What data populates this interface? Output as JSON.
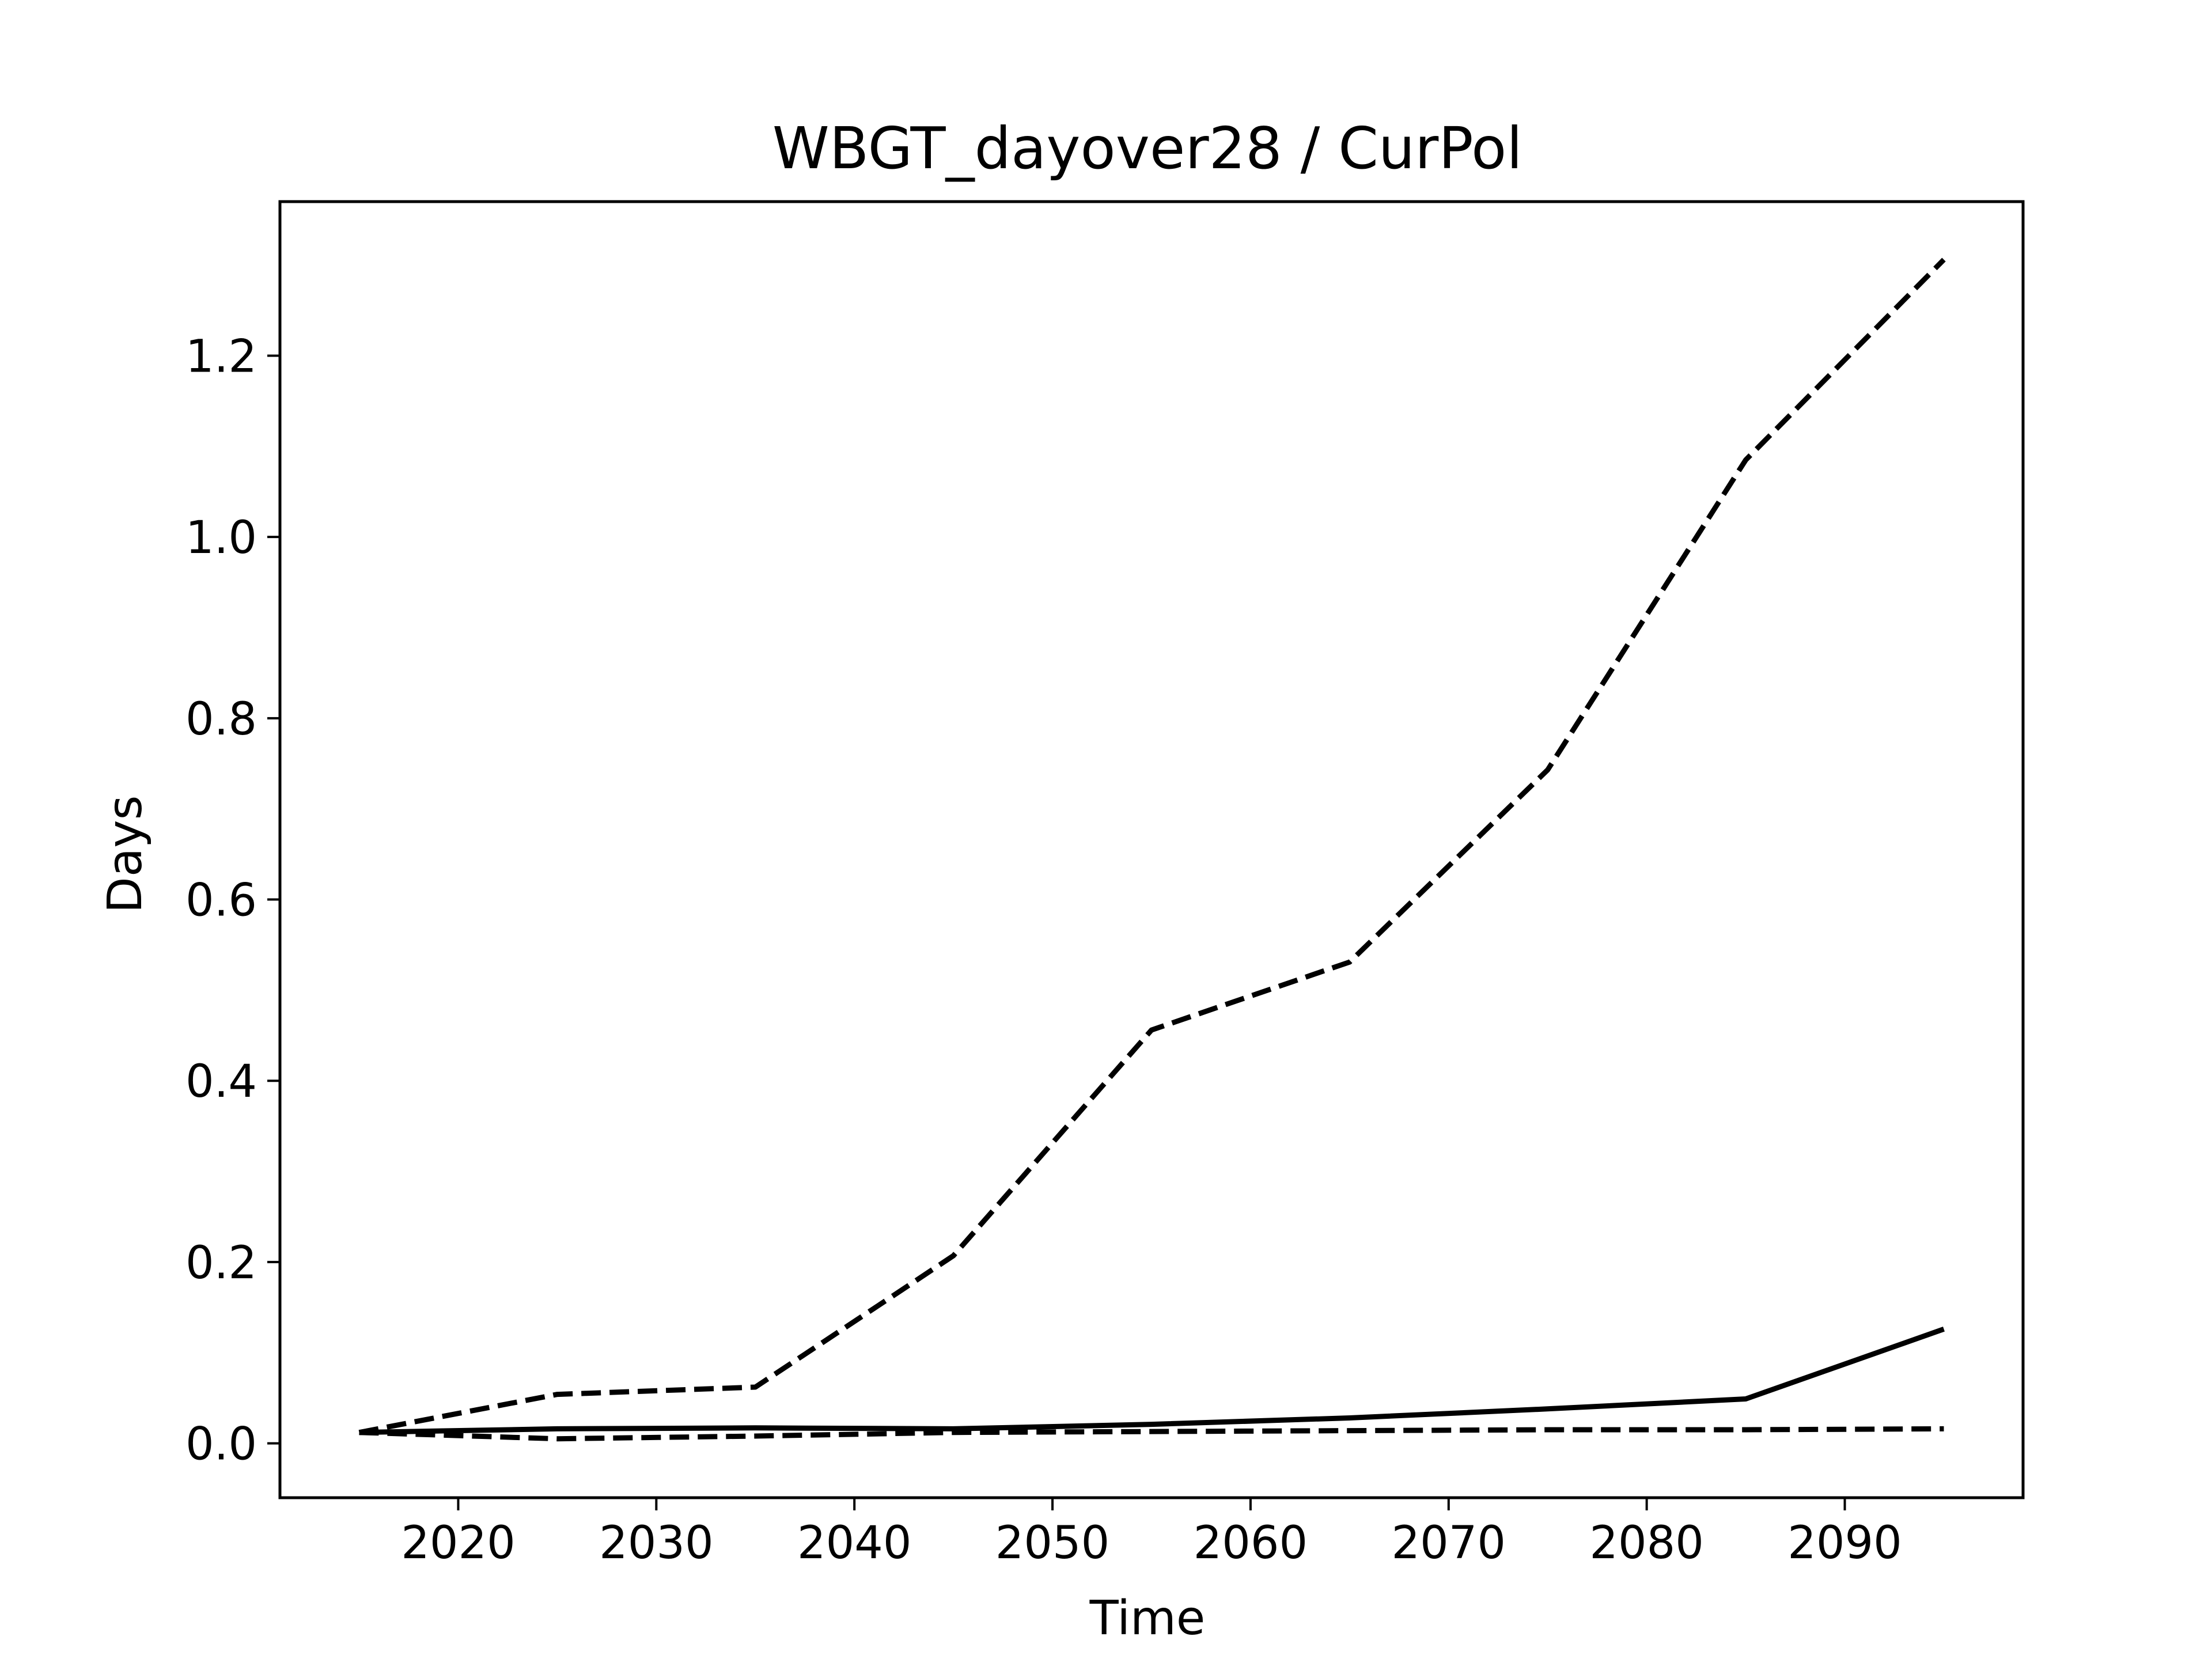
{
  "chart_data": {
    "type": "line",
    "title": "WBGT_dayover28 / CurPol",
    "xlabel": "Time",
    "ylabel": "Days",
    "xlim": [
      2011,
      2099
    ],
    "ylim": [
      -0.06,
      1.37
    ],
    "x_ticks": [
      2020,
      2030,
      2040,
      2050,
      2060,
      2070,
      2080,
      2090
    ],
    "y_ticks": [
      0.0,
      0.2,
      0.4,
      0.6,
      0.8,
      1.0,
      1.2
    ],
    "x_tick_labels": [
      "2020",
      "2030",
      "2040",
      "2050",
      "2060",
      "2070",
      "2080",
      "2090"
    ],
    "y_tick_labels": [
      "0.0",
      "0.2",
      "0.4",
      "0.6",
      "0.8",
      "1.0",
      "1.2"
    ],
    "grid": false,
    "legend": false,
    "line_color": "#000000",
    "x": [
      2015,
      2025,
      2035,
      2045,
      2055,
      2065,
      2075,
      2085,
      2095
    ],
    "series": [
      {
        "style": "dashed",
        "values": [
          0.012,
          0.054,
          0.062,
          0.207,
          0.456,
          0.531,
          0.743,
          1.085,
          1.306
        ]
      },
      {
        "style": "solid",
        "values": [
          0.012,
          0.016,
          0.017,
          0.016,
          0.021,
          0.028,
          0.038,
          0.049,
          0.126
        ]
      },
      {
        "style": "dashed",
        "values": [
          0.012,
          0.005,
          0.008,
          0.012,
          0.013,
          0.014,
          0.015,
          0.015,
          0.016
        ]
      }
    ]
  }
}
